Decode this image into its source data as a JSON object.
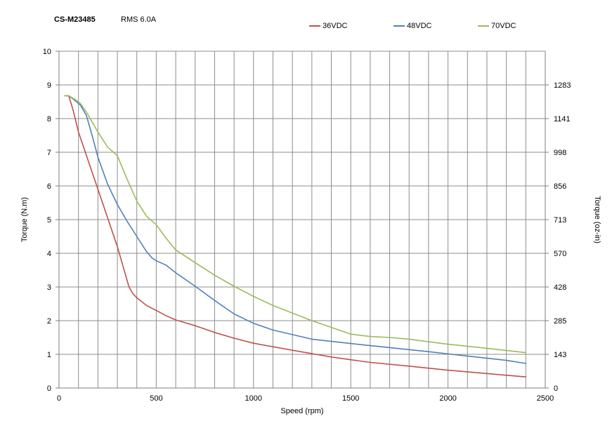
{
  "header": {
    "title": "CS-M23485",
    "subtitle": "RMS 6.0A"
  },
  "chart_data": {
    "type": "line",
    "xlabel": "Speed (rpm)",
    "ylabel": "Torque (N.m)",
    "y2label": "Torque (oz-in)",
    "xlim": [
      0,
      2500
    ],
    "ylim": [
      0,
      10
    ],
    "grid": true,
    "legend_position": "top-right",
    "x_ticks": [
      "0",
      "500",
      "1000",
      "1500",
      "2000",
      "2500"
    ],
    "y_ticks": [
      "0",
      "1",
      "2",
      "3",
      "4",
      "5",
      "6",
      "7",
      "8",
      "9",
      "10"
    ],
    "y2_ticks": [
      "0",
      "143",
      "285",
      "428",
      "570",
      "713",
      "856",
      "998",
      "1141",
      "1283"
    ],
    "series": [
      {
        "name": "36VDC",
        "color": "#c0504d",
        "x": [
          30,
          50,
          70,
          100,
          150,
          200,
          250,
          300,
          330,
          360,
          380,
          400,
          450,
          500,
          550,
          600,
          700,
          800,
          900,
          1000,
          1200,
          1400,
          1600,
          1800,
          2000,
          2200,
          2400
        ],
        "y": [
          8.68,
          8.68,
          8.3,
          7.6,
          6.75,
          5.9,
          5.05,
          4.2,
          3.6,
          3.0,
          2.8,
          2.68,
          2.45,
          2.3,
          2.15,
          2.02,
          1.85,
          1.65,
          1.48,
          1.33,
          1.12,
          0.92,
          0.76,
          0.65,
          0.53,
          0.43,
          0.33
        ]
      },
      {
        "name": "48VDC",
        "color": "#4f81bd",
        "x": [
          30,
          50,
          80,
          110,
          140,
          170,
          200,
          250,
          300,
          350,
          400,
          450,
          480,
          500,
          550,
          600,
          700,
          800,
          900,
          1000,
          1100,
          1300,
          1500,
          1700,
          1900,
          2100,
          2300,
          2400
        ],
        "y": [
          8.68,
          8.68,
          8.55,
          8.4,
          8.1,
          7.5,
          6.85,
          6.05,
          5.45,
          4.95,
          4.5,
          4.05,
          3.85,
          3.78,
          3.65,
          3.42,
          3.02,
          2.6,
          2.2,
          1.92,
          1.72,
          1.45,
          1.32,
          1.2,
          1.08,
          0.95,
          0.82,
          0.73
        ]
      },
      {
        "name": "70VDC",
        "color": "#9bbb59",
        "x": [
          30,
          50,
          80,
          110,
          140,
          170,
          200,
          250,
          300,
          350,
          400,
          450,
          500,
          550,
          600,
          700,
          800,
          900,
          1000,
          1100,
          1300,
          1500,
          1600,
          1700,
          1800,
          2000,
          2200,
          2400
        ],
        "y": [
          8.68,
          8.68,
          8.58,
          8.45,
          8.2,
          7.9,
          7.6,
          7.15,
          6.9,
          6.2,
          5.55,
          5.1,
          4.85,
          4.45,
          4.1,
          3.72,
          3.35,
          3.02,
          2.72,
          2.45,
          2.0,
          1.6,
          1.53,
          1.5,
          1.45,
          1.3,
          1.18,
          1.05
        ]
      }
    ]
  }
}
